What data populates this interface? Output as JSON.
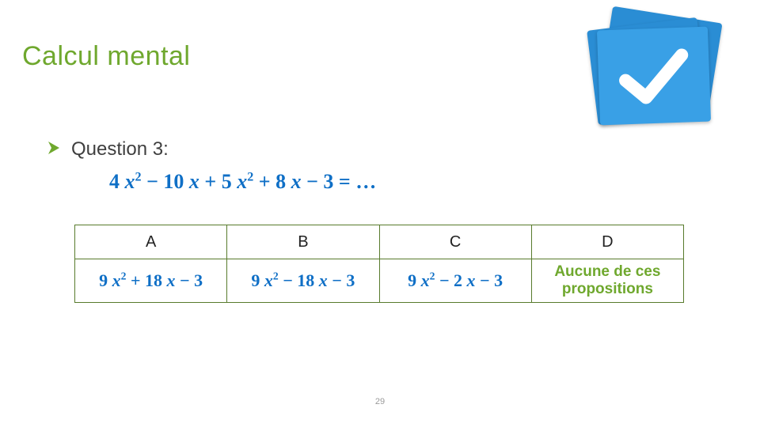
{
  "title": {
    "text": "Calcul mental",
    "color": "#6fa82e"
  },
  "question": {
    "label": "Question 3:",
    "bullet_color": "#6fa82e",
    "expression_html": "4&nbsp;<i>x</i><sup>2</sup> &minus; 10&nbsp;<i>x</i> + 5&nbsp;<i>x</i><sup>2</sup> + 8&nbsp;<i>x</i> &minus; 3 = &hellip;",
    "expression_color": "#0f6fc6"
  },
  "answers": {
    "headers": [
      "A",
      "B",
      "C",
      "D"
    ],
    "cells_html": [
      "9&nbsp;<i>x</i><sup>2</sup> + 18&nbsp;<i>x</i> &minus; 3",
      "9&nbsp;<i>x</i><sup>2</sup> &minus; 18&nbsp;<i>x</i> &minus; 3",
      "9&nbsp;<i>x</i><sup>2</sup> &minus; 2&nbsp;<i>x</i> &minus; 3",
      "Aucune de ces<br>propositions"
    ],
    "math_color": "#0f6fc6",
    "none_color": "#6fa82e",
    "border_color": "#587b2c"
  },
  "slide_number": "29",
  "decoration": {
    "accent_dark": "#4d7a1f",
    "accent_mid": "#7aa84a",
    "accent_light": "#c8dd9f"
  },
  "check_icon": {
    "back_color": "#2a8dd4",
    "front_color": "#39a0e6",
    "check_color": "#ffffff"
  }
}
